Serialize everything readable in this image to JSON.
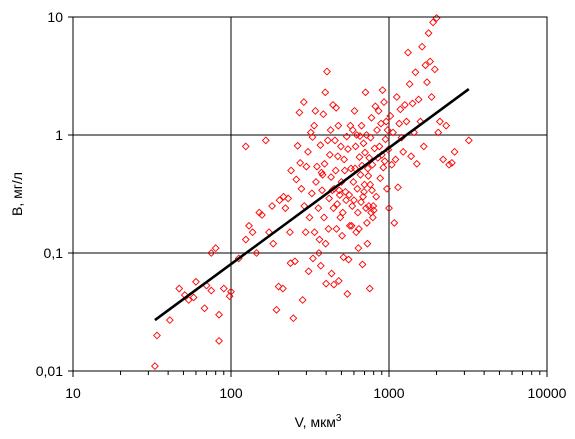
{
  "chart_data": {
    "type": "scatter",
    "title": "",
    "xlabel": "V, мкм",
    "xlabel_superscript": "3",
    "ylabel": "B, мг/л",
    "xscale": "log",
    "yscale": "log",
    "xlim": [
      10,
      10000
    ],
    "ylim": [
      0.01,
      10
    ],
    "x_tick_labels": [
      "10",
      "100",
      "1000",
      "10000"
    ],
    "y_tick_labels": [
      "0,01",
      "0,1",
      "1",
      "10"
    ],
    "x_tick_values": [
      10,
      100,
      1000,
      10000
    ],
    "y_tick_values": [
      0.01,
      0.1,
      1,
      10
    ],
    "grid": "major",
    "marker": "diamond-open",
    "marker_color": "#ff0000",
    "line_color": "#000000",
    "series": [
      {
        "kind": "scatter",
        "points": [
          [
            33,
            0.011
          ],
          [
            34,
            0.02
          ],
          [
            41,
            0.027
          ],
          [
            47,
            0.05
          ],
          [
            51,
            0.044
          ],
          [
            54,
            0.04
          ],
          [
            58,
            0.042
          ],
          [
            60,
            0.057
          ],
          [
            68,
            0.034
          ],
          [
            70,
            0.053
          ],
          [
            75,
            0.048
          ],
          [
            75,
            0.1
          ],
          [
            80,
            0.11
          ],
          [
            84,
            0.03
          ],
          [
            84,
            0.018
          ],
          [
            90,
            0.05
          ],
          [
            98,
            0.043
          ],
          [
            100,
            0.047
          ],
          [
            112,
            0.09
          ],
          [
            124,
            0.8
          ],
          [
            124,
            0.13
          ],
          [
            130,
            0.17
          ],
          [
            137,
            0.15
          ],
          [
            145,
            0.1
          ],
          [
            151,
            0.22
          ],
          [
            157,
            0.21
          ],
          [
            166,
            0.9
          ],
          [
            174,
            0.15
          ],
          [
            182,
            0.25
          ],
          [
            185,
            0.12
          ],
          [
            194,
            0.033
          ],
          [
            200,
            0.052
          ],
          [
            203,
            0.28
          ],
          [
            213,
            0.05
          ],
          [
            215,
            0.3
          ],
          [
            221,
            0.24
          ],
          [
            230,
            0.29
          ],
          [
            236,
            0.15
          ],
          [
            238,
            0.082
          ],
          [
            240,
            0.5
          ],
          [
            248,
            0.028
          ],
          [
            254,
            0.085
          ],
          [
            259,
            0.42
          ],
          [
            264,
            0.81
          ],
          [
            271,
            1.55
          ],
          [
            274,
            0.58
          ],
          [
            279,
            0.35
          ],
          [
            284,
            0.04
          ],
          [
            289,
            1.9
          ],
          [
            291,
            0.25
          ],
          [
            297,
            0.15
          ],
          [
            300,
            0.54
          ],
          [
            307,
            0.72
          ],
          [
            310,
            0.07
          ],
          [
            314,
            0.2
          ],
          [
            320,
            1.05
          ],
          [
            325,
            0.32
          ],
          [
            328,
            0.96
          ],
          [
            330,
            0.09
          ],
          [
            336,
            1.2
          ],
          [
            338,
            0.15
          ],
          [
            342,
            1.6
          ],
          [
            345,
            0.4
          ],
          [
            350,
            0.54
          ],
          [
            357,
            0.24
          ],
          [
            360,
            0.1
          ],
          [
            363,
            0.13
          ],
          [
            368,
            0.82
          ],
          [
            370,
            0.078
          ],
          [
            374,
            0.48
          ],
          [
            377,
            0.34
          ],
          [
            380,
            0.46
          ],
          [
            384,
            1.5
          ],
          [
            388,
            0.2
          ],
          [
            391,
            0.57
          ],
          [
            395,
            2.3
          ],
          [
            397,
            0.12
          ],
          [
            400,
            0.055
          ],
          [
            405,
            3.45
          ],
          [
            410,
            0.9
          ],
          [
            414,
            0.16
          ],
          [
            418,
            0.29
          ],
          [
            422,
            0.68
          ],
          [
            427,
            1.1
          ],
          [
            430,
            0.44
          ],
          [
            433,
            0.067
          ],
          [
            438,
            0.34
          ],
          [
            442,
            1.8
          ],
          [
            445,
            0.24
          ],
          [
            448,
            0.054
          ],
          [
            450,
            0.35
          ],
          [
            455,
            0.9
          ],
          [
            460,
            0.5
          ],
          [
            463,
            1.7
          ],
          [
            465,
            0.16
          ],
          [
            470,
            0.26
          ],
          [
            474,
            0.66
          ],
          [
            478,
            1.2
          ],
          [
            481,
            0.058
          ],
          [
            484,
            0.34
          ],
          [
            488,
            0.31
          ],
          [
            492,
            0.2
          ],
          [
            496,
            0.8
          ],
          [
            500,
            0.4
          ],
          [
            505,
            0.14
          ],
          [
            510,
            0.22
          ],
          [
            515,
            0.092
          ],
          [
            520,
            0.62
          ],
          [
            525,
            0.5
          ],
          [
            530,
            0.33
          ],
          [
            535,
            0.28
          ],
          [
            540,
            0.97
          ],
          [
            545,
            0.045
          ],
          [
            550,
            0.76
          ],
          [
            555,
            0.088
          ],
          [
            560,
            0.31
          ],
          [
            565,
            0.17
          ],
          [
            570,
            1.2
          ],
          [
            575,
            0.52
          ],
          [
            580,
            0.17
          ],
          [
            585,
            0.25
          ],
          [
            590,
            1.1
          ],
          [
            595,
            0.4
          ],
          [
            600,
            0.28
          ],
          [
            605,
            1.6
          ],
          [
            610,
            0.52
          ],
          [
            615,
            0.8
          ],
          [
            620,
            0.15
          ],
          [
            625,
            1.0
          ],
          [
            630,
            0.35
          ],
          [
            635,
            0.22
          ],
          [
            640,
            0.11
          ],
          [
            645,
            0.16
          ],
          [
            650,
            0.65
          ],
          [
            655,
            0.98
          ],
          [
            660,
            0.46
          ],
          [
            665,
            0.27
          ],
          [
            670,
            1.2
          ],
          [
            675,
            0.55
          ],
          [
            680,
            0.08
          ],
          [
            685,
            0.3
          ],
          [
            690,
            0.85
          ],
          [
            695,
            0.33
          ],
          [
            700,
            0.38
          ],
          [
            705,
            0.71
          ],
          [
            710,
            2.3
          ],
          [
            715,
            0.24
          ],
          [
            720,
            1.0
          ],
          [
            725,
            0.18
          ],
          [
            730,
            0.12
          ],
          [
            735,
            0.52
          ],
          [
            740,
            0.45
          ],
          [
            745,
            0.25
          ],
          [
            750,
            0.64
          ],
          [
            755,
            0.05
          ],
          [
            760,
            0.38
          ],
          [
            765,
            0.95
          ],
          [
            770,
            0.22
          ],
          [
            775,
            1.4
          ],
          [
            780,
            0.34
          ],
          [
            785,
            0.56
          ],
          [
            790,
            0.2
          ],
          [
            795,
            0.25
          ],
          [
            800,
            0.23
          ],
          [
            810,
            0.77
          ],
          [
            820,
            1.75
          ],
          [
            830,
            0.3
          ],
          [
            840,
            1.1
          ],
          [
            850,
            0.64
          ],
          [
            860,
            1.6
          ],
          [
            870,
            0.8
          ],
          [
            880,
            0.43
          ],
          [
            890,
            1.25
          ],
          [
            900,
            0.68
          ],
          [
            910,
            2.4
          ],
          [
            920,
            0.53
          ],
          [
            930,
            1.9
          ],
          [
            940,
            0.6
          ],
          [
            950,
            0.92
          ],
          [
            960,
            1.3
          ],
          [
            970,
            0.35
          ],
          [
            980,
            1.1
          ],
          [
            990,
            0.75
          ],
          [
            1000,
            0.24
          ],
          [
            1020,
            1.45
          ],
          [
            1040,
            0.56
          ],
          [
            1060,
            1.05
          ],
          [
            1080,
            0.18
          ],
          [
            1100,
            0.62
          ],
          [
            1120,
            2.1
          ],
          [
            1140,
            0.36
          ],
          [
            1160,
            1.25
          ],
          [
            1180,
            1.65
          ],
          [
            1200,
            0.95
          ],
          [
            1230,
            0.72
          ],
          [
            1260,
            1.8
          ],
          [
            1290,
            1.3
          ],
          [
            1320,
            5.0
          ],
          [
            1350,
            2.7
          ],
          [
            1380,
            0.66
          ],
          [
            1410,
            1.85
          ],
          [
            1440,
            1.05
          ],
          [
            1470,
            3.4
          ],
          [
            1500,
            0.57
          ],
          [
            1540,
            2.0
          ],
          [
            1580,
            1.3
          ],
          [
            1620,
            5.6
          ],
          [
            1660,
            0.8
          ],
          [
            1700,
            3.9
          ],
          [
            1740,
            2.8
          ],
          [
            1780,
            7.3
          ],
          [
            1820,
            4.2
          ],
          [
            1860,
            2.1
          ],
          [
            1900,
            9.0
          ],
          [
            1950,
            3.6
          ],
          [
            2000,
            9.8
          ],
          [
            2050,
            1.05
          ],
          [
            2100,
            1.3
          ],
          [
            2200,
            0.62
          ],
          [
            2300,
            1.2
          ],
          [
            2400,
            0.56
          ],
          [
            2500,
            0.58
          ],
          [
            2600,
            0.72
          ],
          [
            3200,
            0.9
          ]
        ]
      },
      {
        "kind": "fit-line",
        "x": [
          33,
          3200
        ],
        "y": [
          0.027,
          2.45
        ]
      }
    ]
  }
}
